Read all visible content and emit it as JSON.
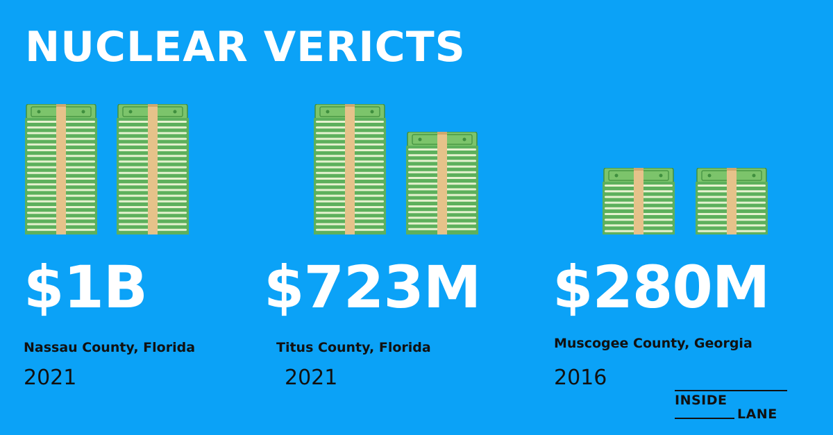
{
  "title": "NUCLEAR VERICTS",
  "verdicts": [
    {
      "amount": "$1B",
      "location": "Nassau County, Florida",
      "year": "2021"
    },
    {
      "amount": "$723M",
      "location": "Titus County, Florida",
      "year": "2021"
    },
    {
      "amount": "$280M",
      "location": "Muscogee County, Georgia",
      "year": "2016"
    }
  ],
  "logo": {
    "line1": "INSIDE",
    "line2": "LANE"
  },
  "colors": {
    "background": "#0ba2f7",
    "text": "#ffffff",
    "dark_text": "#111111",
    "money_green": "#5db05c",
    "money_stripe": "#e6f2d0",
    "band": "#e6c28a"
  },
  "icons": [
    "money-stack-icon"
  ]
}
